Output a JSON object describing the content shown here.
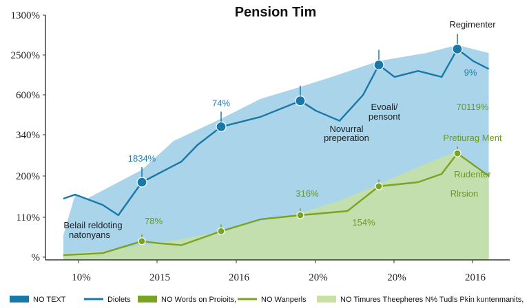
{
  "chart_data": {
    "type": "area",
    "title": "Pension Tim",
    "y_tick_labels": [
      "%",
      "110%",
      "200%",
      "340%",
      "600%",
      "2500%",
      "1300%"
    ],
    "x_tick_labels": [
      "10%",
      "2015",
      "2016",
      "20%",
      "20%",
      "2016"
    ],
    "grid": false,
    "series": [
      {
        "id": "blue-area",
        "kind": "area",
        "color": "#a9d4ea",
        "x": [
          0.0,
          0.15,
          0.3,
          1.0,
          1.4,
          2.0,
          2.5,
          3.0,
          3.4,
          4.0,
          4.6,
          5.0,
          5.4
        ],
        "y": [
          0.55,
          1.55,
          1.45,
          2.15,
          2.85,
          3.4,
          3.9,
          4.2,
          4.45,
          4.85,
          5.05,
          5.25,
          5.05
        ]
      },
      {
        "id": "green-area",
        "kind": "area",
        "color": "#c9e0a3",
        "x": [
          0.0,
          0.5,
          1.0,
          1.5,
          2.0,
          2.5,
          3.0,
          3.5,
          4.0,
          4.6,
          5.0,
          5.4
        ],
        "y": [
          0.1,
          0.15,
          0.3,
          0.45,
          0.65,
          0.9,
          1.1,
          1.4,
          1.8,
          2.3,
          2.6,
          2.0
        ]
      },
      {
        "id": "blue-line",
        "kind": "line",
        "color": "#1a78a8",
        "x": [
          0.0,
          0.15,
          0.5,
          0.7,
          1.0,
          1.2,
          1.5,
          1.7,
          2.0,
          2.5,
          3.0,
          3.2,
          3.5,
          3.8,
          4.0,
          4.2,
          4.5,
          4.8,
          5.0,
          5.2,
          5.4
        ],
        "y": [
          1.45,
          1.55,
          1.3,
          1.05,
          1.85,
          2.05,
          2.35,
          2.75,
          3.2,
          3.45,
          3.85,
          3.6,
          3.35,
          4.0,
          4.75,
          4.45,
          4.6,
          4.45,
          5.15,
          4.85,
          4.65
        ]
      },
      {
        "id": "green-line",
        "kind": "line",
        "color": "#7aa324",
        "x": [
          0.0,
          0.5,
          1.0,
          1.2,
          1.5,
          2.0,
          2.5,
          3.0,
          3.3,
          3.6,
          4.0,
          4.5,
          4.8,
          5.0,
          5.4
        ],
        "y": [
          0.05,
          0.1,
          0.4,
          0.35,
          0.3,
          0.65,
          0.95,
          1.05,
          1.1,
          1.15,
          1.75,
          1.85,
          2.05,
          2.55,
          2.0
        ]
      }
    ],
    "markers": [
      {
        "series": "blue-line",
        "x": 1.0,
        "y": 1.85,
        "label": "1834%"
      },
      {
        "series": "blue-line",
        "x": 2.0,
        "y": 3.2,
        "label": "74%"
      },
      {
        "series": "blue-line",
        "x": 3.0,
        "y": 3.85,
        "label": ""
      },
      {
        "series": "blue-line",
        "x": 4.0,
        "y": 4.75,
        "label": ""
      },
      {
        "series": "blue-line",
        "x": 5.0,
        "y": 5.15,
        "label": ""
      },
      {
        "series": "green-line",
        "x": 1.0,
        "y": 0.4,
        "label": ""
      },
      {
        "series": "green-line",
        "x": 2.0,
        "y": 0.65,
        "label": ""
      },
      {
        "series": "green-line",
        "x": 3.0,
        "y": 1.05,
        "label": ""
      },
      {
        "series": "green-line",
        "x": 4.0,
        "y": 1.75,
        "label": ""
      },
      {
        "series": "green-line",
        "x": 5.0,
        "y": 2.55,
        "label": ""
      }
    ],
    "annotations": [
      {
        "text": "Regimenter",
        "style": "dark"
      },
      {
        "text": "9%",
        "style": "blue"
      },
      {
        "text": "70119%",
        "style": "green"
      },
      {
        "text": "Pretiurag Ment",
        "style": "green"
      },
      {
        "text": "Rudenter",
        "style": "green"
      },
      {
        "text": "Rlrsion",
        "style": "green"
      },
      {
        "text": "Evoali/",
        "style": "dark"
      },
      {
        "text": "pensont",
        "style": "dark"
      },
      {
        "text": "Novurral",
        "style": "dark"
      },
      {
        "text": "preperation",
        "style": "dark"
      },
      {
        "text": "316%",
        "style": "green"
      },
      {
        "text": "154%",
        "style": "green"
      },
      {
        "text": "78%",
        "style": "green"
      },
      {
        "text": "Belail reldoting",
        "style": "dark"
      },
      {
        "text": "natonyans",
        "style": "dark"
      }
    ],
    "legend": {
      "placement": "bottom",
      "items": [
        {
          "label": "NO TEXT",
          "kind": "swatch",
          "color": "#1a78a8"
        },
        {
          "label": "Diolets",
          "kind": "line",
          "color": "#1a78a8"
        },
        {
          "label": "NO Words on Proioits,",
          "kind": "swatch",
          "color": "#7aa324"
        },
        {
          "label": "NO Wanperls",
          "kind": "line",
          "color": "#7aa324"
        },
        {
          "label": "NO Timures  Theepheres  N% Tudls  Pkin kuntenmanits,",
          "kind": "swatch",
          "color": "#c9e0a3"
        }
      ]
    }
  }
}
